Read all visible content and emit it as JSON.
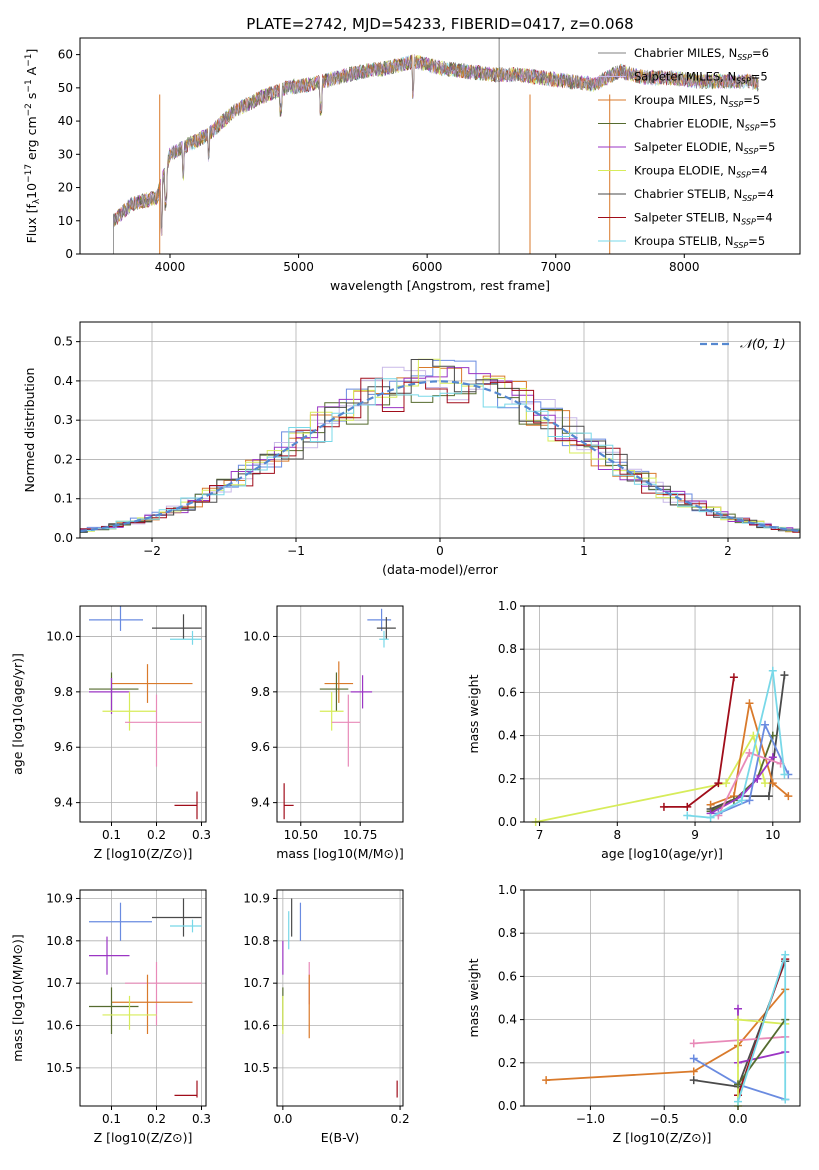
{
  "title": "PLATE=2742, MJD=54233, FIBERID=0417, z=0.068",
  "colors": {
    "chabrier_miles": "#6a8be0",
    "salpeter_miles": "#c9b9e8",
    "kroupa_miles": "#d97a2b",
    "chabrier_elodie": "#556b2f",
    "salpeter_elodie": "#9b35c4",
    "kroupa_elodie": "#d7ec5a",
    "chabrier_stelib": "#4a4a4a",
    "salpeter_stelib": "#a00d1a",
    "kroupa_stelib": "#78d8e8",
    "pink": "#e88ab8",
    "normal_curve": "#5588d0",
    "grid": "#b0b0b0"
  },
  "chart_data": [
    {
      "id": "spectrum",
      "type": "line",
      "xlabel": "wavelength [Angstrom, rest frame]",
      "ylabel": "Flux [f",
      "ylabel_parts": {
        "main": "Flux [f",
        "sub": "λ",
        "mid": "10",
        "sup1": "−17",
        "rest": " erg cm",
        "sup2": "−2",
        "s": " s",
        "sup3": "−1",
        "end": " A",
        "sup4": "−1",
        "close": "]"
      },
      "xlim": [
        3300,
        8900
      ],
      "ylim": [
        0,
        65
      ],
      "xticks": [
        4000,
        5000,
        6000,
        7000,
        8000
      ],
      "yticks": [
        0,
        10,
        20,
        30,
        40,
        50,
        60
      ],
      "grid": false,
      "legend_position": "top-right",
      "legend": [
        {
          "pre": "Chabrier MILES, N",
          "sub": "SSP",
          "post": "=6",
          "color": "#808080"
        },
        {
          "pre": "Salpeter MILES, N",
          "sub": "SSP",
          "post": "=5",
          "color": "#c9b9e8"
        },
        {
          "pre": "Kroupa MILES, N",
          "sub": "SSP",
          "post": "=5",
          "color": "#d97a2b"
        },
        {
          "pre": "Chabrier ELODIE, N",
          "sub": "SSP",
          "post": "=5",
          "color": "#556b2f"
        },
        {
          "pre": "Salpeter ELODIE, N",
          "sub": "SSP",
          "post": "=5",
          "color": "#9b35c4"
        },
        {
          "pre": "Kroupa ELODIE, N",
          "sub": "SSP",
          "post": "=4",
          "color": "#d7ec5a"
        },
        {
          "pre": "Chabrier STELIB, N",
          "sub": "SSP",
          "post": "=4",
          "color": "#4a4a4a"
        },
        {
          "pre": "Salpeter STELIB, N",
          "sub": "SSP",
          "post": "=4",
          "color": "#a00d1a"
        },
        {
          "pre": "Kroupa STELIB, N",
          "sub": "SSP",
          "post": "=5",
          "color": "#78d8e8"
        }
      ],
      "continuum": [
        [
          3560,
          10
        ],
        [
          3700,
          15
        ],
        [
          3900,
          17
        ],
        [
          4000,
          30
        ],
        [
          4300,
          36
        ],
        [
          4500,
          43
        ],
        [
          4700,
          47
        ],
        [
          4900,
          50
        ],
        [
          5100,
          51
        ],
        [
          5300,
          53
        ],
        [
          5500,
          55
        ],
        [
          5700,
          56
        ],
        [
          5900,
          58
        ],
        [
          6100,
          56
        ],
        [
          6300,
          55
        ],
        [
          6500,
          54
        ],
        [
          6700,
          54
        ],
        [
          6900,
          53
        ],
        [
          7100,
          52
        ],
        [
          7300,
          51
        ],
        [
          7500,
          55
        ],
        [
          7700,
          53
        ],
        [
          7900,
          53
        ],
        [
          8100,
          52
        ],
        [
          8300,
          52
        ],
        [
          8500,
          52
        ],
        [
          8580,
          51
        ]
      ],
      "absorption_dips": [
        [
          3934,
          15,
          32
        ],
        [
          3968,
          10,
          30
        ],
        [
          4102,
          8,
          36
        ],
        [
          4300,
          6,
          40
        ],
        [
          4861,
          6,
          48
        ],
        [
          5175,
          8,
          45
        ],
        [
          5892,
          9,
          48
        ],
        [
          6563,
          0,
          50
        ]
      ],
      "drop_lines": [
        [
          3920,
          "#d97a2b"
        ],
        [
          6800,
          "#d97a2b"
        ],
        [
          7420,
          "#d97a2b"
        ],
        [
          6560,
          "#808080"
        ]
      ]
    },
    {
      "id": "residual_hist",
      "type": "area",
      "xlabel": "(data-model)/error",
      "ylabel": "Normed distribution",
      "xlim": [
        -2.5,
        2.5
      ],
      "ylim": [
        0,
        0.55
      ],
      "xticks": [
        -2,
        -1,
        0,
        1,
        2
      ],
      "yticks": [
        0.0,
        0.1,
        0.2,
        0.3,
        0.4,
        0.5
      ],
      "grid": true,
      "legend_position": "top-right",
      "legend": [
        {
          "label": "𝒩(0, 1)",
          "color": "#5588d0"
        }
      ],
      "bin_width": 0.15,
      "bin_start": -2.6
    },
    {
      "id": "age_vs_Z",
      "type": "scatter",
      "xlabel": "Z [log10(Z/Z⊙)]",
      "ylabel": "age [log10(age/yr)]",
      "xlim": [
        0.03,
        0.31
      ],
      "ylim": [
        9.33,
        10.11
      ],
      "xticks": [
        0.1,
        0.2,
        0.3
      ],
      "yticks": [
        9.4,
        9.6,
        9.8,
        10.0
      ],
      "grid": true,
      "points": [
        {
          "x": 0.12,
          "y": 10.06,
          "xerr": [
            0.05,
            0.17
          ],
          "yerr": [
            10.02,
            10.11
          ],
          "color": "#6a8be0"
        },
        {
          "x": 0.26,
          "y": 10.03,
          "xerr": [
            0.19,
            0.3
          ],
          "yerr": [
            9.99,
            10.08
          ],
          "color": "#4a4a4a"
        },
        {
          "x": 0.28,
          "y": 9.99,
          "xerr": [
            0.23,
            0.3
          ],
          "yerr": [
            9.97,
            10.02
          ],
          "color": "#78d8e8"
        },
        {
          "x": 0.18,
          "y": 9.83,
          "xerr": [
            0.1,
            0.28
          ],
          "yerr": [
            9.76,
            9.9
          ],
          "color": "#d97a2b"
        },
        {
          "x": 0.1,
          "y": 9.81,
          "xerr": [
            0.05,
            0.16
          ],
          "yerr": [
            9.73,
            9.87
          ],
          "color": "#556b2f"
        },
        {
          "x": 0.1,
          "y": 9.8,
          "xerr": [
            0.05,
            0.14
          ],
          "yerr": [
            9.72,
            9.85
          ],
          "color": "#9b35c4"
        },
        {
          "x": 0.14,
          "y": 9.73,
          "xerr": [
            0.08,
            0.2
          ],
          "yerr": [
            9.66,
            9.8
          ],
          "color": "#d7ec5a"
        },
        {
          "x": 0.2,
          "y": 9.69,
          "xerr": [
            0.13,
            0.3
          ],
          "yerr": [
            9.53,
            9.79
          ],
          "color": "#e88ab8"
        },
        {
          "x": 0.29,
          "y": 9.39,
          "xerr": [
            0.24,
            0.29
          ],
          "yerr": [
            9.34,
            9.44
          ],
          "color": "#a00d1a"
        }
      ]
    },
    {
      "id": "age_vs_mass",
      "type": "scatter",
      "xlabel": "mass [log10(M/M⊙)]",
      "ylabel": "",
      "xlim": [
        10.4,
        10.93
      ],
      "ylim": [
        9.33,
        10.11
      ],
      "xticks": [
        10.5,
        10.75
      ],
      "yticks": [
        9.4,
        9.6,
        9.8,
        10.0
      ],
      "grid": true,
      "points": [
        {
          "x": 10.84,
          "y": 10.06,
          "xerr": [
            10.78,
            10.88
          ],
          "yerr": [
            10.02,
            10.1
          ],
          "color": "#6a8be0"
        },
        {
          "x": 10.86,
          "y": 10.03,
          "xerr": [
            10.82,
            10.9
          ],
          "yerr": [
            9.99,
            10.07
          ],
          "color": "#4a4a4a"
        },
        {
          "x": 10.85,
          "y": 9.99,
          "xerr": [
            10.83,
            10.87
          ],
          "yerr": [
            9.96,
            10.02
          ],
          "color": "#78d8e8"
        },
        {
          "x": 10.66,
          "y": 9.83,
          "xerr": [
            10.6,
            10.72
          ],
          "yerr": [
            9.76,
            9.91
          ],
          "color": "#d97a2b"
        },
        {
          "x": 10.65,
          "y": 9.81,
          "xerr": [
            10.58,
            10.7
          ],
          "yerr": [
            9.73,
            9.87
          ],
          "color": "#556b2f"
        },
        {
          "x": 10.76,
          "y": 9.8,
          "xerr": [
            10.71,
            10.8
          ],
          "yerr": [
            9.74,
            9.86
          ],
          "color": "#9b35c4"
        },
        {
          "x": 10.63,
          "y": 9.73,
          "xerr": [
            10.58,
            10.68
          ],
          "yerr": [
            9.66,
            9.8
          ],
          "color": "#d7ec5a"
        },
        {
          "x": 10.7,
          "y": 9.69,
          "xerr": [
            10.63,
            10.75
          ],
          "yerr": [
            9.53,
            9.79
          ],
          "color": "#e88ab8"
        },
        {
          "x": 10.43,
          "y": 9.39,
          "xerr": [
            10.43,
            10.47
          ],
          "yerr": [
            9.34,
            9.47
          ],
          "color": "#a00d1a"
        }
      ]
    },
    {
      "id": "weight_vs_age",
      "type": "line",
      "xlabel": "age [log10(age/yr)]",
      "ylabel": "mass weight",
      "xlim": [
        6.8,
        10.35
      ],
      "ylim": [
        0,
        1.0
      ],
      "xticks": [
        7,
        8,
        9,
        10
      ],
      "yticks": [
        0.0,
        0.2,
        0.4,
        0.6,
        0.8,
        1.0
      ],
      "grid": true,
      "series": [
        {
          "color": "#d7ec5a",
          "x": [
            6.95,
            9.4,
            9.75,
            9.9
          ],
          "y": [
            0.0,
            0.18,
            0.4,
            0.18
          ]
        },
        {
          "color": "#a00d1a",
          "x": [
            8.6,
            8.9,
            9.3,
            9.5
          ],
          "y": [
            0.07,
            0.07,
            0.18,
            0.67
          ]
        },
        {
          "color": "#4a4a4a",
          "x": [
            9.2,
            9.6,
            9.95,
            10.15
          ],
          "y": [
            0.06,
            0.12,
            0.12,
            0.68
          ]
        },
        {
          "color": "#d97a2b",
          "x": [
            9.2,
            9.5,
            9.7,
            10.0,
            10.2
          ],
          "y": [
            0.08,
            0.12,
            0.55,
            0.18,
            0.12
          ]
        },
        {
          "color": "#556b2f",
          "x": [
            9.2,
            9.5,
            9.8,
            10.0
          ],
          "y": [
            0.05,
            0.1,
            0.2,
            0.4
          ]
        },
        {
          "color": "#9b35c4",
          "x": [
            9.2,
            9.6,
            9.8,
            10.0
          ],
          "y": [
            0.04,
            0.12,
            0.2,
            0.3
          ]
        },
        {
          "color": "#6a8be0",
          "x": [
            9.3,
            9.7,
            9.9,
            10.2
          ],
          "y": [
            0.04,
            0.1,
            0.45,
            0.22
          ]
        },
        {
          "color": "#e88ab8",
          "x": [
            9.3,
            9.7,
            10.1
          ],
          "y": [
            0.03,
            0.32,
            0.27
          ]
        },
        {
          "color": "#78d8e8",
          "x": [
            8.9,
            9.2,
            9.6,
            10.0,
            10.15
          ],
          "y": [
            0.03,
            0.02,
            0.1,
            0.7,
            0.22
          ]
        }
      ]
    },
    {
      "id": "mass_vs_Z",
      "type": "scatter",
      "xlabel": "Z [log10(Z/Z⊙)]",
      "ylabel": "mass [log10(M/M⊙)]",
      "xlim": [
        0.03,
        0.31
      ],
      "ylim": [
        10.41,
        10.92
      ],
      "xticks": [
        0.1,
        0.2,
        0.3
      ],
      "yticks": [
        10.5,
        10.6,
        10.7,
        10.8,
        10.9
      ],
      "grid": true,
      "points": [
        {
          "x": 0.12,
          "y": 10.845,
          "xerr": [
            0.05,
            0.19
          ],
          "yerr": [
            10.8,
            10.89
          ],
          "color": "#6a8be0"
        },
        {
          "x": 0.26,
          "y": 10.855,
          "xerr": [
            0.19,
            0.3
          ],
          "yerr": [
            10.81,
            10.9
          ],
          "color": "#4a4a4a"
        },
        {
          "x": 0.28,
          "y": 10.835,
          "xerr": [
            0.23,
            0.3
          ],
          "yerr": [
            10.82,
            10.85
          ],
          "color": "#78d8e8"
        },
        {
          "x": 0.09,
          "y": 10.765,
          "xerr": [
            0.05,
            0.14
          ],
          "yerr": [
            10.72,
            10.81
          ],
          "color": "#9b35c4"
        },
        {
          "x": 0.2,
          "y": 10.7,
          "xerr": [
            0.13,
            0.3
          ],
          "yerr": [
            10.6,
            10.75
          ],
          "color": "#e88ab8"
        },
        {
          "x": 0.18,
          "y": 10.655,
          "xerr": [
            0.1,
            0.28
          ],
          "yerr": [
            10.58,
            10.72
          ],
          "color": "#d97a2b"
        },
        {
          "x": 0.1,
          "y": 10.645,
          "xerr": [
            0.05,
            0.16
          ],
          "yerr": [
            10.58,
            10.69
          ],
          "color": "#556b2f"
        },
        {
          "x": 0.14,
          "y": 10.625,
          "xerr": [
            0.08,
            0.2
          ],
          "yerr": [
            10.59,
            10.67
          ],
          "color": "#d7ec5a"
        },
        {
          "x": 0.29,
          "y": 10.435,
          "xerr": [
            0.24,
            0.29
          ],
          "yerr": [
            10.43,
            10.47
          ],
          "color": "#a00d1a"
        }
      ]
    },
    {
      "id": "mass_vs_ebv",
      "type": "scatter",
      "xlabel": "E(B-V)",
      "ylabel": "",
      "xlim": [
        -0.01,
        0.205
      ],
      "ylim": [
        10.41,
        10.92
      ],
      "xticks": [
        0.0,
        0.2
      ],
      "yticks": [
        10.5,
        10.6,
        10.7,
        10.8,
        10.9
      ],
      "grid": true,
      "points": [
        {
          "x": 0.03,
          "y": 10.845,
          "yerr": [
            10.8,
            10.89
          ],
          "color": "#6a8be0"
        },
        {
          "x": 0.015,
          "y": 10.855,
          "yerr": [
            10.81,
            10.9
          ],
          "color": "#4a4a4a"
        },
        {
          "x": 0.01,
          "y": 10.835,
          "yerr": [
            10.78,
            10.87
          ],
          "color": "#78d8e8"
        },
        {
          "x": 0.0,
          "y": 10.765,
          "yerr": [
            10.72,
            10.8
          ],
          "color": "#9b35c4"
        },
        {
          "x": 0.045,
          "y": 10.7,
          "yerr": [
            10.65,
            10.75
          ],
          "color": "#e88ab8"
        },
        {
          "x": 0.045,
          "y": 10.655,
          "yerr": [
            10.57,
            10.72
          ],
          "color": "#d97a2b"
        },
        {
          "x": 0.0,
          "y": 10.645,
          "yerr": [
            10.59,
            10.69
          ],
          "color": "#556b2f"
        },
        {
          "x": 0.0,
          "y": 10.625,
          "yerr": [
            10.58,
            10.67
          ],
          "color": "#d7ec5a"
        },
        {
          "x": 0.195,
          "y": 10.45,
          "yerr": [
            10.43,
            10.47
          ],
          "color": "#a00d1a"
        }
      ]
    },
    {
      "id": "weight_vs_Z",
      "type": "line",
      "xlabel": "Z [log10(Z/Z⊙)]",
      "ylabel": "mass weight",
      "xlim": [
        -1.45,
        0.42
      ],
      "ylim": [
        0,
        1.0
      ],
      "xticks": [
        -1.0,
        -0.5,
        0.0
      ],
      "yticks": [
        0.0,
        0.2,
        0.4,
        0.6,
        0.8,
        1.0
      ],
      "grid": true,
      "series": [
        {
          "color": "#d97a2b",
          "x": [
            -1.3,
            -0.3,
            0.0,
            0.32
          ],
          "y": [
            0.12,
            0.16,
            0.28,
            0.54
          ]
        },
        {
          "color": "#4a4a4a",
          "x": [
            -0.3,
            0.0,
            0.32
          ],
          "y": [
            0.12,
            0.09,
            0.67
          ]
        },
        {
          "color": "#6a8be0",
          "x": [
            -0.3,
            0.0,
            0.32
          ],
          "y": [
            0.22,
            0.1,
            0.03
          ]
        },
        {
          "color": "#e88ab8",
          "x": [
            -0.3,
            0.32
          ],
          "y": [
            0.29,
            0.32
          ]
        },
        {
          "color": "#9b35c4",
          "x": [
            0.0,
            0.0,
            0.32
          ],
          "y": [
            0.45,
            0.2,
            0.25
          ]
        },
        {
          "color": "#a00d1a",
          "x": [
            0.0,
            0.32
          ],
          "y": [
            0.05,
            0.68
          ]
        },
        {
          "color": "#d7ec5a",
          "x": [
            0.0,
            0.0,
            0.32
          ],
          "y": [
            0.0,
            0.4,
            0.38
          ]
        },
        {
          "color": "#556b2f",
          "x": [
            0.0,
            0.32
          ],
          "y": [
            0.1,
            0.4
          ]
        },
        {
          "color": "#78d8e8",
          "x": [
            0.0,
            0.32,
            0.32
          ],
          "y": [
            0.02,
            0.7,
            0.03
          ]
        }
      ]
    }
  ]
}
